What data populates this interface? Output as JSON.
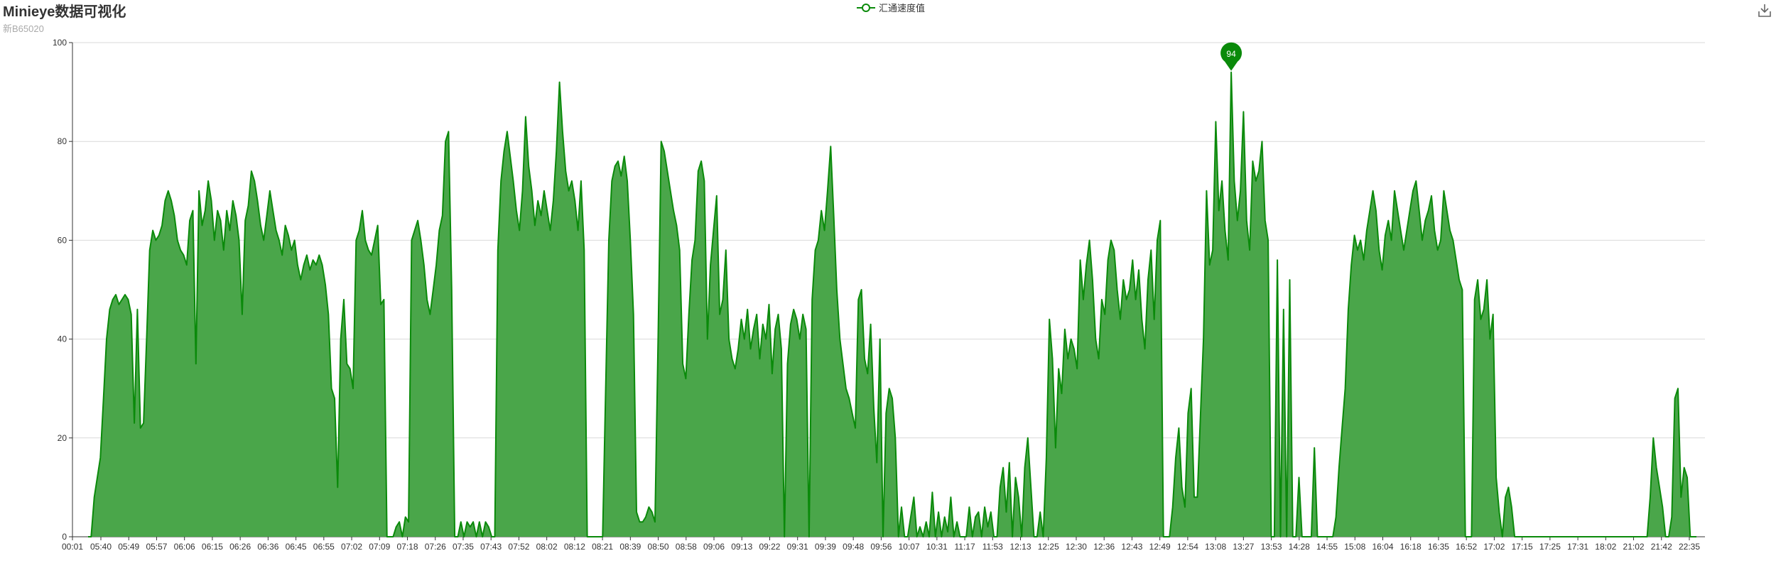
{
  "header": {
    "title": "Minieye数据可视化",
    "subtitle": "新B65020"
  },
  "legend": {
    "label": "汇通速度值"
  },
  "toolbox": {
    "download_icon": "download-icon"
  },
  "colors": {
    "series": "#0a8a0a",
    "area": "#4aa64a",
    "axis": "#333333",
    "grid": "#d9d9d9",
    "marker": "#0a8a0a"
  },
  "chart_data": {
    "type": "area",
    "title": "Minieye数据可视化",
    "subtitle": "新B65020",
    "ylim": [
      0,
      100
    ],
    "y_ticks": [
      "0",
      "20",
      "40",
      "60",
      "80",
      "100"
    ],
    "x_ticks": [
      "00:01",
      "05:40",
      "05:49",
      "05:57",
      "06:06",
      "06:15",
      "06:26",
      "06:36",
      "06:45",
      "06:55",
      "07:02",
      "07:09",
      "07:18",
      "07:26",
      "07:35",
      "07:43",
      "07:52",
      "08:02",
      "08:12",
      "08:21",
      "08:39",
      "08:50",
      "08:58",
      "09:06",
      "09:13",
      "09:22",
      "09:31",
      "09:39",
      "09:48",
      "09:56",
      "10:07",
      "10:31",
      "11:17",
      "11:53",
      "12:13",
      "12:25",
      "12:30",
      "12:36",
      "12:43",
      "12:49",
      "12:54",
      "13:08",
      "13:27",
      "13:53",
      "14:28",
      "14:55",
      "15:08",
      "16:04",
      "16:18",
      "16:35",
      "16:52",
      "17:02",
      "17:15",
      "17:25",
      "17:31",
      "18:02",
      "21:02",
      "21:42",
      "22:35"
    ],
    "series": [
      {
        "name": "汇通速度值",
        "values": [
          0,
          0,
          8,
          12,
          16,
          28,
          40,
          46,
          48,
          49,
          47,
          48,
          49,
          48,
          45,
          23,
          46,
          22,
          23,
          40,
          58,
          62,
          60,
          61,
          63,
          68,
          70,
          68,
          65,
          60,
          58,
          57,
          55,
          64,
          66,
          35,
          70,
          63,
          66,
          72,
          68,
          60,
          66,
          64,
          58,
          66,
          62,
          68,
          65,
          60,
          45,
          64,
          67,
          74,
          72,
          68,
          63,
          60,
          65,
          70,
          66,
          62,
          60,
          57,
          63,
          61,
          58,
          60,
          55,
          52,
          55,
          57,
          54,
          56,
          55,
          57,
          55,
          51,
          45,
          30,
          28,
          10,
          40,
          48,
          35,
          34,
          30,
          60,
          62,
          66,
          60,
          58,
          57,
          60,
          63,
          47,
          48,
          0,
          0,
          0,
          2,
          3,
          0,
          4,
          3,
          60,
          62,
          64,
          60,
          55,
          48,
          45,
          50,
          55,
          62,
          65,
          80,
          82,
          50,
          0,
          0,
          3,
          0,
          3,
          2,
          3,
          0,
          3,
          0,
          3,
          2,
          0,
          0,
          58,
          72,
          78,
          82,
          77,
          72,
          66,
          62,
          70,
          85,
          75,
          70,
          63,
          68,
          65,
          70,
          66,
          62,
          68,
          78,
          92,
          82,
          74,
          70,
          72,
          68,
          62,
          72,
          58,
          0,
          0,
          0,
          0,
          0,
          0,
          30,
          60,
          72,
          75,
          76,
          73,
          77,
          72,
          60,
          45,
          5,
          3,
          3,
          4,
          6,
          5,
          3,
          40,
          80,
          78,
          74,
          70,
          66,
          63,
          58,
          35,
          32,
          45,
          56,
          60,
          74,
          76,
          72,
          40,
          55,
          62,
          69,
          45,
          48,
          58,
          40,
          36,
          34,
          38,
          44,
          40,
          46,
          38,
          42,
          45,
          36,
          43,
          40,
          47,
          33,
          42,
          45,
          38,
          0,
          35,
          43,
          46,
          44,
          40,
          45,
          42,
          0,
          48,
          58,
          60,
          66,
          62,
          70,
          79,
          65,
          50,
          40,
          35,
          30,
          28,
          25,
          22,
          48,
          50,
          36,
          33,
          43,
          26,
          15,
          40,
          0,
          25,
          30,
          28,
          20,
          0,
          6,
          0,
          0,
          4,
          8,
          0,
          2,
          0,
          3,
          0,
          9,
          0,
          5,
          0,
          4,
          1,
          8,
          0,
          3,
          0,
          0,
          0,
          6,
          0,
          4,
          5,
          0,
          6,
          2,
          5,
          0,
          0,
          10,
          14,
          5,
          15,
          0,
          12,
          8,
          0,
          14,
          20,
          10,
          0,
          0,
          5,
          0,
          16,
          44,
          36,
          18,
          34,
          29,
          42,
          36,
          40,
          38,
          34,
          56,
          48,
          55,
          60,
          52,
          40,
          36,
          48,
          45,
          56,
          60,
          58,
          50,
          44,
          52,
          48,
          50,
          56,
          48,
          54,
          44,
          38,
          52,
          58,
          44,
          60,
          64,
          0,
          0,
          0,
          6,
          16,
          22,
          10,
          6,
          25,
          30,
          8,
          8,
          24,
          40,
          70,
          55,
          58,
          84,
          66,
          72,
          62,
          56,
          94,
          72,
          64,
          70,
          86,
          64,
          58,
          76,
          72,
          74,
          80,
          64,
          60,
          0,
          0,
          56,
          0,
          46,
          0,
          52,
          0,
          0,
          12,
          0,
          0,
          0,
          0,
          18,
          0,
          0,
          0,
          0,
          0,
          0,
          4,
          14,
          22,
          30,
          46,
          55,
          61,
          58,
          60,
          56,
          62,
          66,
          70,
          66,
          58,
          54,
          61,
          64,
          60,
          70,
          66,
          62,
          58,
          62,
          66,
          70,
          72,
          66,
          60,
          64,
          66,
          69,
          62,
          58,
          60,
          70,
          66,
          62,
          60,
          56,
          52,
          50,
          0,
          0,
          0,
          48,
          52,
          44,
          46,
          52,
          40,
          45,
          12,
          5,
          0,
          8,
          10,
          6,
          0,
          0,
          0,
          0,
          0,
          0,
          0,
          0,
          0,
          0,
          0,
          0,
          0,
          0,
          0,
          0,
          0,
          0,
          0,
          0,
          0,
          0,
          0,
          0,
          0,
          0,
          0,
          0,
          0,
          0,
          0,
          0,
          0,
          0,
          0,
          0,
          0,
          0,
          0,
          0,
          0,
          0,
          0,
          0,
          8,
          20,
          14,
          10,
          6,
          0,
          0,
          4,
          28,
          30,
          8,
          14,
          12,
          0,
          0,
          0
        ]
      }
    ],
    "max_marker": {
      "label": "94",
      "value": 94
    },
    "xlabel": "",
    "ylabel": "",
    "grid": true,
    "legend_position": "top-center"
  }
}
